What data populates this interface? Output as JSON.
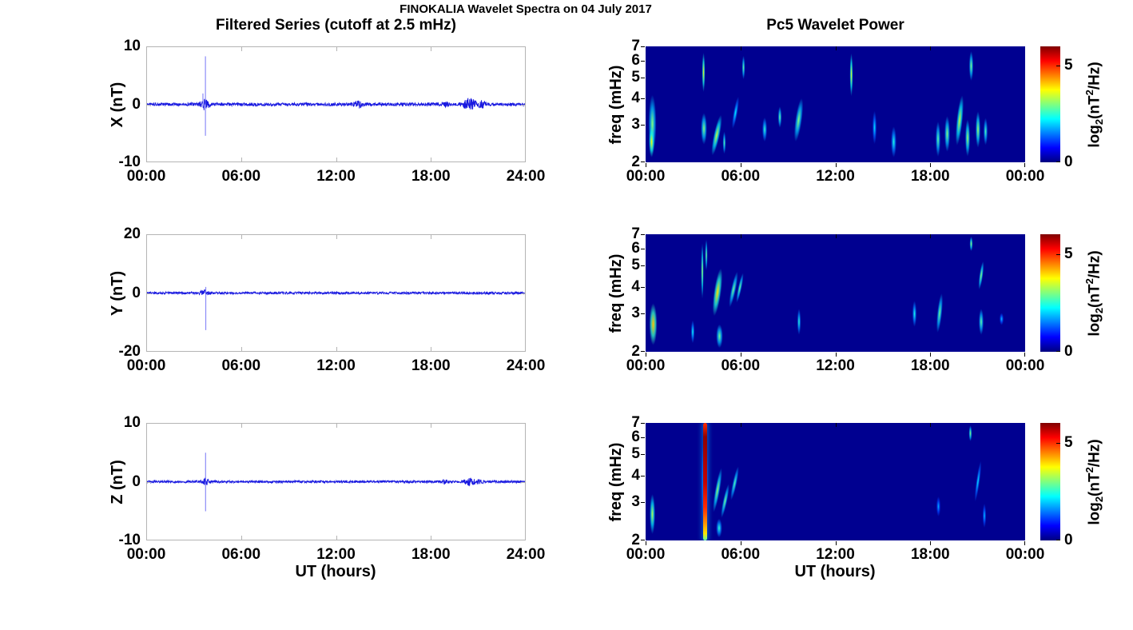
{
  "figure": {
    "title": "FINOKALIA Wavelet Spectra on 04 July 2017"
  },
  "left_column": {
    "title": "Filtered Series (cutoff at 2.5 mHz)",
    "xlabel": "UT (hours)",
    "xticks": [
      "00:00",
      "06:00",
      "12:00",
      "18:00",
      "24:00"
    ]
  },
  "right_column": {
    "title": "Pc5 Wavelet Power",
    "xlabel": "UT (hours)",
    "xticks": [
      "00:00",
      "06:00",
      "12:00",
      "18:00",
      "00:00"
    ],
    "colorbar": {
      "ticks": [
        "0",
        "5"
      ],
      "range": [
        0,
        6
      ],
      "colormap": "jet",
      "label_parts": {
        "word": "log",
        "sub": "2",
        "mid": "(nT",
        "sup": "2",
        "end": "/Hz)"
      }
    }
  },
  "chart_data": [
    {
      "type": "line",
      "id": "timeseries-x",
      "ylabel": "X (nT)",
      "ylim": [
        -10,
        10
      ],
      "yticks": [
        10,
        0,
        -10
      ],
      "xlim_hours": [
        0,
        24
      ],
      "line_color": "#1a1ae0",
      "noise_amp_nT": 0.28,
      "spikes": [
        {
          "t": 3.71,
          "up": 8.4,
          "down": -5.5
        },
        {
          "t": 3.55,
          "up": 1.9,
          "down": -0.6
        }
      ],
      "bursts": [
        {
          "t": 3.7,
          "w": 0.25,
          "amp": 0.9
        },
        {
          "t": 13.4,
          "w": 0.25,
          "amp": 0.5
        },
        {
          "t": 19.0,
          "w": 0.15,
          "amp": 0.3
        },
        {
          "t": 20.5,
          "w": 0.4,
          "amp": 1.0
        },
        {
          "t": 21.3,
          "w": 0.2,
          "amp": 0.5
        }
      ]
    },
    {
      "type": "line",
      "id": "timeseries-y",
      "ylabel": "Y (nT)",
      "ylim": [
        -20,
        20
      ],
      "yticks": [
        20,
        0,
        -20
      ],
      "xlim_hours": [
        0,
        24
      ],
      "line_color": "#1a1ae0",
      "noise_amp_nT": 0.4,
      "spikes": [
        {
          "t": 3.73,
          "up": 2.1,
          "down": -12.8
        }
      ],
      "bursts": [
        {
          "t": 3.65,
          "w": 0.25,
          "amp": 0.9
        }
      ]
    },
    {
      "type": "line",
      "id": "timeseries-z",
      "ylabel": "Z (nT)",
      "ylim": [
        -10,
        10
      ],
      "yticks": [
        10,
        0,
        -10
      ],
      "xlim_hours": [
        0,
        24
      ],
      "line_color": "#1a1ae0",
      "noise_amp_nT": 0.2,
      "spikes": [
        {
          "t": 3.72,
          "up": 5.0,
          "down": -5.1
        }
      ],
      "bursts": [
        {
          "t": 3.7,
          "w": 0.25,
          "amp": 0.6
        },
        {
          "t": 18.9,
          "w": 0.15,
          "amp": 0.3
        },
        {
          "t": 20.5,
          "w": 0.35,
          "amp": 0.5
        },
        {
          "t": 21.1,
          "w": 0.2,
          "amp": 0.3
        }
      ]
    },
    {
      "type": "heatmap",
      "id": "wavelet-x",
      "ylabel": "freq (mHz)",
      "ylim_mHz": [
        2,
        7
      ],
      "yscale": "log",
      "yticks": [
        7,
        6,
        5,
        4,
        3,
        2
      ],
      "clim": [
        0,
        6
      ],
      "background_value": 0,
      "features": [
        {
          "t0": 0.1,
          "t1": 0.75,
          "f0": 2.0,
          "f1": 4.6,
          "i": 3.0
        },
        {
          "t0": 0.15,
          "t1": 0.6,
          "f0": 2.0,
          "f1": 3.1,
          "i": 3.8
        },
        {
          "t0": 3.55,
          "t1": 3.8,
          "f0": 4.0,
          "f1": 7.0,
          "i": 3.8,
          "shape": "streak"
        },
        {
          "t0": 3.45,
          "t1": 3.95,
          "f0": 2.3,
          "f1": 3.6,
          "i": 3.0
        },
        {
          "t0": 4.25,
          "t1": 4.75,
          "f0": 2.0,
          "f1": 3.6,
          "i": 3.4,
          "tilt": 12
        },
        {
          "t0": 4.85,
          "t1": 5.1,
          "f0": 2.1,
          "f1": 2.9,
          "i": 2.8
        },
        {
          "t0": 5.5,
          "t1": 5.85,
          "f0": 2.7,
          "f1": 4.3,
          "i": 2.2,
          "tilt": 10
        },
        {
          "t0": 6.05,
          "t1": 6.3,
          "f0": 4.7,
          "f1": 6.6,
          "i": 2.9,
          "shape": "streak"
        },
        {
          "t0": 7.35,
          "t1": 7.75,
          "f0": 2.4,
          "f1": 3.4,
          "i": 2.5
        },
        {
          "t0": 8.35,
          "t1": 8.65,
          "f0": 2.8,
          "f1": 3.8,
          "i": 2.9
        },
        {
          "t0": 9.4,
          "t1": 9.95,
          "f0": 2.3,
          "f1": 4.3,
          "i": 3.0,
          "tilt": 8
        },
        {
          "t0": 12.9,
          "t1": 13.15,
          "f0": 3.8,
          "f1": 7.0,
          "i": 3.7,
          "shape": "streak"
        },
        {
          "t0": 14.3,
          "t1": 14.65,
          "f0": 2.3,
          "f1": 3.7,
          "i": 2.1
        },
        {
          "t0": 15.45,
          "t1": 15.9,
          "f0": 2.0,
          "f1": 3.1,
          "i": 2.4
        },
        {
          "t0": 18.3,
          "t1": 18.7,
          "f0": 2.0,
          "f1": 3.3,
          "i": 2.8
        },
        {
          "t0": 18.85,
          "t1": 19.3,
          "f0": 2.1,
          "f1": 3.5,
          "i": 3.0
        },
        {
          "t0": 19.6,
          "t1": 20.1,
          "f0": 2.2,
          "f1": 4.5,
          "i": 3.4,
          "tilt": 6
        },
        {
          "t0": 20.15,
          "t1": 20.55,
          "f0": 2.0,
          "f1": 3.4,
          "i": 3.2
        },
        {
          "t0": 20.4,
          "t1": 20.75,
          "f0": 4.6,
          "f1": 7.0,
          "i": 3.0,
          "shape": "streak"
        },
        {
          "t0": 20.8,
          "t1": 21.2,
          "f0": 2.2,
          "f1": 3.7,
          "i": 3.2
        },
        {
          "t0": 21.3,
          "t1": 21.7,
          "f0": 2.3,
          "f1": 3.4,
          "i": 2.7
        }
      ]
    },
    {
      "type": "heatmap",
      "id": "wavelet-y",
      "ylabel": "freq (mHz)",
      "ylim_mHz": [
        2,
        7
      ],
      "yscale": "log",
      "yticks": [
        7,
        6,
        5,
        4,
        3,
        2
      ],
      "clim": [
        0,
        6
      ],
      "background_value": 0,
      "features": [
        {
          "t0": 0.15,
          "t1": 0.8,
          "f0": 2.0,
          "f1": 3.6,
          "i": 4.1
        },
        {
          "t0": 2.85,
          "t1": 3.15,
          "f0": 2.1,
          "f1": 2.9,
          "i": 2.3
        },
        {
          "t0": 3.5,
          "t1": 3.7,
          "f0": 3.2,
          "f1": 7.0,
          "i": 3.5,
          "shape": "streak"
        },
        {
          "t0": 3.72,
          "t1": 3.88,
          "f0": 4.5,
          "f1": 7.0,
          "i": 3.1,
          "shape": "streak"
        },
        {
          "t0": 4.25,
          "t1": 4.85,
          "f0": 2.7,
          "f1": 5.3,
          "i": 3.9,
          "tilt": 8
        },
        {
          "t0": 4.4,
          "t1": 4.95,
          "f0": 2.0,
          "f1": 2.8,
          "i": 2.9
        },
        {
          "t0": 5.35,
          "t1": 5.75,
          "f0": 3.0,
          "f1": 5.0,
          "i": 2.9,
          "tilt": 12
        },
        {
          "t0": 5.8,
          "t1": 6.1,
          "f0": 3.2,
          "f1": 4.9,
          "i": 2.9,
          "tilt": 12
        },
        {
          "t0": 9.55,
          "t1": 9.85,
          "f0": 2.3,
          "f1": 3.3,
          "i": 2.5
        },
        {
          "t0": 16.85,
          "t1": 17.2,
          "f0": 2.5,
          "f1": 3.6,
          "i": 2.4
        },
        {
          "t0": 18.4,
          "t1": 18.8,
          "f0": 2.3,
          "f1": 4.0,
          "i": 2.9,
          "tilt": 6
        },
        {
          "t0": 20.45,
          "t1": 20.7,
          "f0": 5.7,
          "f1": 7.0,
          "i": 3.2,
          "shape": "streak"
        },
        {
          "t0": 21.05,
          "t1": 21.35,
          "f0": 3.7,
          "f1": 5.5,
          "i": 3.1,
          "tilt": 8
        },
        {
          "t0": 21.0,
          "t1": 21.4,
          "f0": 2.3,
          "f1": 3.3,
          "i": 2.8
        },
        {
          "t0": 22.35,
          "t1": 22.7,
          "f0": 2.6,
          "f1": 3.1,
          "i": 1.9
        }
      ]
    },
    {
      "type": "heatmap",
      "id": "wavelet-z",
      "ylabel": "freq (mHz)",
      "ylim_mHz": [
        2,
        7
      ],
      "yscale": "log",
      "yticks": [
        7,
        6,
        5,
        4,
        3,
        2
      ],
      "clim": [
        0,
        6
      ],
      "background_value": 0,
      "features": [
        {
          "t0": 0.2,
          "t1": 0.65,
          "f0": 2.0,
          "f1": 3.5,
          "i": 3.3
        },
        {
          "t0": 3.45,
          "t1": 4.05,
          "f0": 2.0,
          "f1": 7.0,
          "i": 2.0
        },
        {
          "t0": 3.62,
          "t1": 3.88,
          "f0": 2.0,
          "f1": 7.0,
          "shape": "stripe",
          "stops": [
            [
              0,
              5.0
            ],
            [
              0.12,
              5.9
            ],
            [
              0.5,
              5.6
            ],
            [
              0.72,
              5.0
            ],
            [
              0.85,
              4.4
            ],
            [
              0.94,
              3.9
            ],
            [
              1,
              2.8
            ]
          ]
        },
        {
          "t0": 4.35,
          "t1": 4.75,
          "f0": 2.5,
          "f1": 4.7,
          "i": 3.1,
          "tilt": 10
        },
        {
          "t0": 4.4,
          "t1": 4.9,
          "f0": 2.0,
          "f1": 2.6,
          "i": 2.5
        },
        {
          "t0": 4.85,
          "t1": 5.2,
          "f0": 2.4,
          "f1": 3.9,
          "i": 2.9,
          "tilt": 12
        },
        {
          "t0": 5.45,
          "t1": 5.8,
          "f0": 2.9,
          "f1": 4.7,
          "i": 2.7,
          "tilt": 12
        },
        {
          "t0": 18.35,
          "t1": 18.7,
          "f0": 2.5,
          "f1": 3.3,
          "i": 1.8
        },
        {
          "t0": 20.4,
          "t1": 20.65,
          "f0": 5.6,
          "f1": 7.0,
          "i": 3.1,
          "shape": "streak"
        },
        {
          "t0": 20.85,
          "t1": 21.15,
          "f0": 2.8,
          "f1": 5.0,
          "i": 2.1,
          "tilt": 8
        },
        {
          "t0": 21.25,
          "t1": 21.55,
          "f0": 2.2,
          "f1": 3.1,
          "i": 1.9
        }
      ]
    }
  ]
}
